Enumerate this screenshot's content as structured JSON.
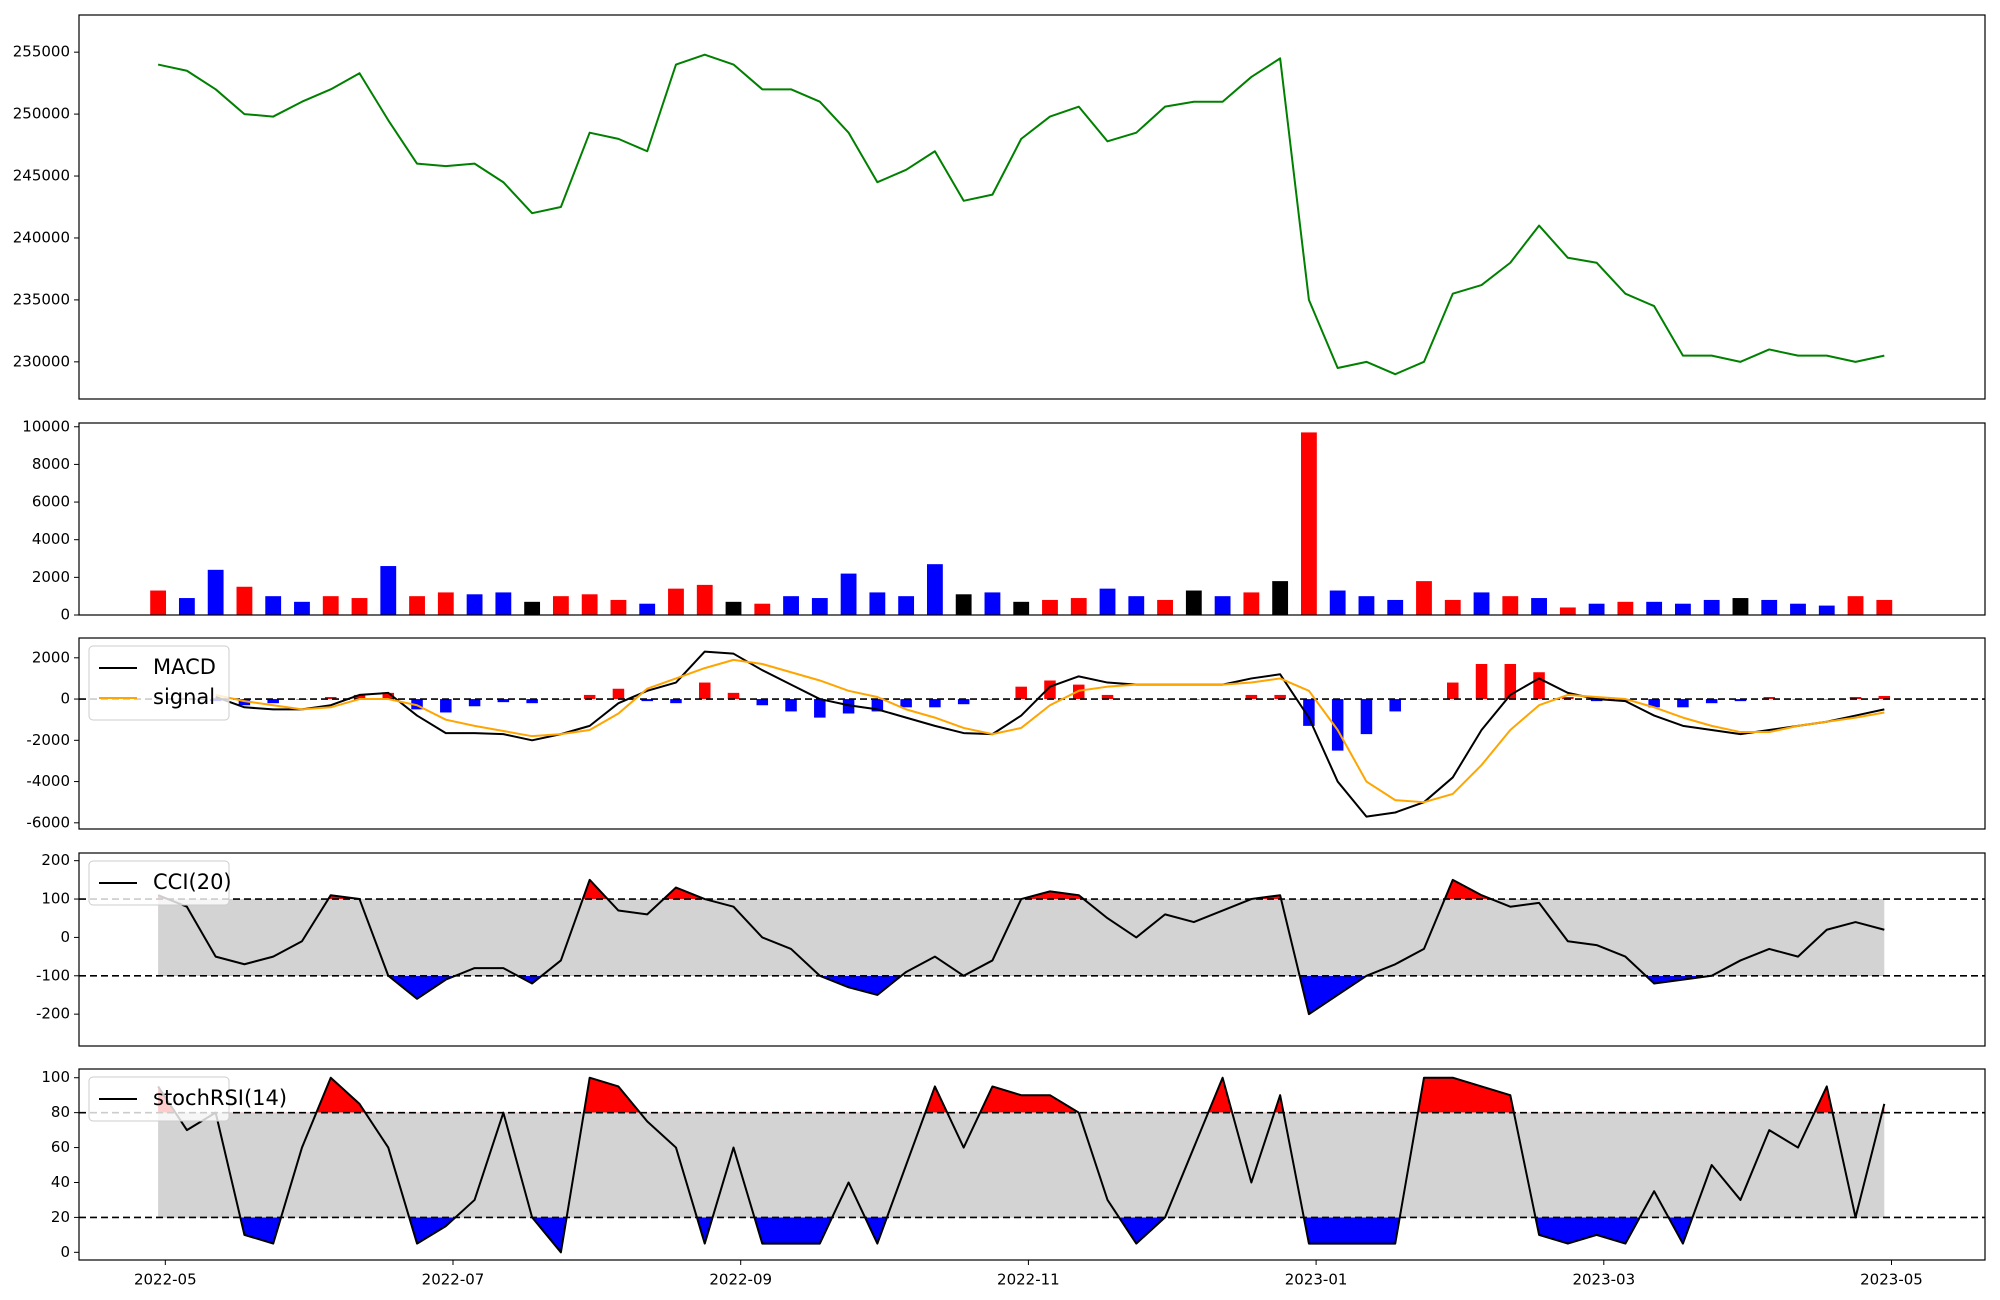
{
  "chart_data": [
    {
      "type": "line",
      "color": "#008000",
      "x": [
        -0.05,
        0.15,
        0.35,
        0.55,
        0.75,
        0.95,
        1.15,
        1.35,
        1.55,
        1.75,
        1.95,
        2.15,
        2.35,
        2.55,
        2.75,
        2.95,
        3.15,
        3.35,
        3.55,
        3.75,
        3.95,
        4.15,
        4.35,
        4.55,
        4.75,
        4.95,
        5.15,
        5.35,
        5.55,
        5.75,
        5.95,
        6.15,
        6.35,
        6.55,
        6.75,
        6.95,
        7.15,
        7.35,
        7.55,
        7.75,
        7.95,
        8.15,
        8.35,
        8.55,
        8.75,
        8.95,
        9.15,
        9.35,
        9.55,
        9.75,
        9.95,
        10.15,
        10.35,
        10.55,
        10.75,
        10.95,
        11.15,
        11.35,
        11.55,
        11.75,
        11.95
      ],
      "values": [
        254000,
        253500,
        252000,
        250000,
        249800,
        251000,
        252000,
        253300,
        249500,
        246000,
        245800,
        246000,
        244500,
        242000,
        242500,
        248500,
        248000,
        247000,
        254000,
        254800,
        254000,
        252000,
        252000,
        251000,
        248500,
        244500,
        245500,
        247000,
        243000,
        243500,
        248000,
        249800,
        250600,
        247800,
        248500,
        250600,
        251000,
        251000,
        253000,
        254500,
        235000,
        229500,
        230000,
        229000,
        230000,
        235500,
        236200,
        238000,
        241000,
        238400,
        238000,
        235500,
        234500,
        230500,
        230500,
        230000,
        231000,
        230500,
        230500,
        230000,
        230500
      ],
      "xlim": [
        -0.6,
        12.65
      ],
      "ylim": [
        227000,
        258000
      ],
      "yticks": [
        230000,
        235000,
        240000,
        245000,
        250000,
        255000
      ]
    },
    {
      "type": "bar",
      "x": [
        -0.05,
        0.15,
        0.35,
        0.55,
        0.75,
        0.95,
        1.15,
        1.35,
        1.55,
        1.75,
        1.95,
        2.15,
        2.35,
        2.55,
        2.75,
        2.95,
        3.15,
        3.35,
        3.55,
        3.75,
        3.95,
        4.15,
        4.35,
        4.55,
        4.75,
        4.95,
        5.15,
        5.35,
        5.55,
        5.75,
        5.95,
        6.15,
        6.35,
        6.55,
        6.75,
        6.95,
        7.15,
        7.35,
        7.55,
        7.75,
        7.95,
        8.15,
        8.35,
        8.55,
        8.75,
        8.95,
        9.15,
        9.35,
        9.55,
        9.75,
        9.95,
        10.15,
        10.35,
        10.55,
        10.75,
        10.95,
        11.15,
        11.35,
        11.55,
        11.75,
        11.95
      ],
      "values": [
        1300,
        900,
        2400,
        1500,
        1000,
        700,
        1000,
        900,
        2600,
        1000,
        1200,
        1100,
        1200,
        700,
        1000,
        1100,
        800,
        600,
        1400,
        1600,
        700,
        600,
        1000,
        900,
        2200,
        1200,
        1000,
        2700,
        1100,
        1200,
        700,
        800,
        900,
        1400,
        1000,
        800,
        1300,
        1000,
        1200,
        1800,
        9700,
        1300,
        1000,
        800,
        1800,
        800,
        1200,
        1000,
        900,
        400,
        600,
        700,
        700,
        600,
        800,
        900,
        800,
        600,
        500,
        1000,
        800
      ],
      "colors": [
        "#ff0000",
        "#0000ff",
        "#0000ff",
        "#ff0000",
        "#0000ff",
        "#0000ff",
        "#ff0000",
        "#ff0000",
        "#0000ff",
        "#ff0000",
        "#ff0000",
        "#0000ff",
        "#0000ff",
        "#000000",
        "#ff0000",
        "#ff0000",
        "#ff0000",
        "#0000ff",
        "#ff0000",
        "#ff0000",
        "#000000",
        "#ff0000",
        "#0000ff",
        "#0000ff",
        "#0000ff",
        "#0000ff",
        "#0000ff",
        "#0000ff",
        "#000000",
        "#0000ff",
        "#000000",
        "#ff0000",
        "#ff0000",
        "#0000ff",
        "#0000ff",
        "#ff0000",
        "#000000",
        "#0000ff",
        "#ff0000",
        "#000000",
        "#ff0000",
        "#0000ff",
        "#0000ff",
        "#0000ff",
        "#ff0000",
        "#ff0000",
        "#0000ff",
        "#ff0000",
        "#0000ff",
        "#ff0000",
        "#0000ff",
        "#ff0000",
        "#0000ff",
        "#0000ff",
        "#0000ff",
        "#000000",
        "#0000ff",
        "#0000ff",
        "#0000ff",
        "#ff0000",
        "#ff0000"
      ],
      "xlim": [
        -0.6,
        12.65
      ],
      "ylim": [
        0,
        10200
      ],
      "yticks": [
        0,
        2000,
        4000,
        6000,
        8000,
        10000
      ]
    },
    {
      "type": "macd",
      "legend": "upper left",
      "x": [
        -0.05,
        0.15,
        0.35,
        0.55,
        0.75,
        0.95,
        1.15,
        1.35,
        1.55,
        1.75,
        1.95,
        2.15,
        2.35,
        2.55,
        2.75,
        2.95,
        3.15,
        3.35,
        3.55,
        3.75,
        3.95,
        4.15,
        4.35,
        4.55,
        4.75,
        4.95,
        5.15,
        5.35,
        5.55,
        5.75,
        5.95,
        6.15,
        6.35,
        6.55,
        6.75,
        6.95,
        7.15,
        7.35,
        7.55,
        7.75,
        7.95,
        8.15,
        8.35,
        8.55,
        8.75,
        8.95,
        9.15,
        9.35,
        9.55,
        9.75,
        9.95,
        10.15,
        10.35,
        10.55,
        10.75,
        10.95,
        11.15,
        11.35,
        11.55,
        11.75,
        11.95
      ],
      "series": [
        {
          "name": "MACD",
          "color": "#000000",
          "values": [
            null,
            null,
            100,
            -400,
            -500,
            -500,
            -300,
            200,
            300,
            -800,
            -1650,
            -1650,
            -1700,
            -2000,
            -1700,
            -1300,
            -200,
            400,
            800,
            2300,
            2200,
            1400,
            700,
            0,
            -300,
            -500,
            -900,
            -1300,
            -1650,
            -1700,
            -800,
            600,
            1100,
            800,
            700,
            700,
            700,
            700,
            1000,
            1200,
            -900,
            -4000,
            -5700,
            -5500,
            -5000,
            -3800,
            -1500,
            200,
            1000,
            300,
            0,
            -100,
            -800,
            -1300,
            -1500,
            -1700,
            -1500,
            -1300,
            -1100,
            -800,
            -500
          ]
        },
        {
          "name": "signal",
          "color": "#ffa500",
          "values": [
            null,
            null,
            200,
            -100,
            -300,
            -500,
            -400,
            0,
            0,
            -300,
            -1000,
            -1300,
            -1550,
            -1800,
            -1700,
            -1500,
            -700,
            500,
            1000,
            1500,
            1900,
            1700,
            1300,
            900,
            400,
            100,
            -500,
            -900,
            -1400,
            -1700,
            -1400,
            -300,
            400,
            600,
            700,
            700,
            700,
            700,
            800,
            1000,
            400,
            -1500,
            -4000,
            -4900,
            -5000,
            -4600,
            -3200,
            -1500,
            -300,
            200,
            100,
            0,
            -400,
            -900,
            -1300,
            -1600,
            -1600,
            -1300,
            -1100,
            -900,
            -650
          ]
        }
      ],
      "histogram": {
        "pos_color": "#ff0000",
        "neg_color": "#0000ff",
        "values": [
          null,
          null,
          -100,
          -300,
          -200,
          0,
          100,
          200,
          300,
          -500,
          -650,
          -350,
          -150,
          -200,
          0,
          200,
          500,
          -100,
          -200,
          800,
          300,
          -300,
          -600,
          -900,
          -700,
          -600,
          -400,
          -400,
          -250,
          0,
          600,
          900,
          700,
          200,
          0,
          0,
          0,
          0,
          200,
          200,
          -1300,
          -2500,
          -1700,
          -600,
          0,
          800,
          1700,
          1700,
          1300,
          100,
          -100,
          -100,
          -400,
          -400,
          -200,
          -100,
          100,
          0,
          0,
          100,
          150
        ]
      },
      "hlines": [
        0
      ],
      "xlim": [
        -0.6,
        12.65
      ],
      "ylim": [
        -6300,
        2960
      ],
      "yticks": [
        -6000,
        -4000,
        -2000,
        0,
        2000
      ]
    },
    {
      "type": "oscillator",
      "legend": "upper left",
      "x": [
        -0.05,
        0.15,
        0.35,
        0.55,
        0.75,
        0.95,
        1.15,
        1.35,
        1.55,
        1.75,
        1.95,
        2.15,
        2.35,
        2.55,
        2.75,
        2.95,
        3.15,
        3.35,
        3.55,
        3.75,
        3.95,
        4.15,
        4.35,
        4.55,
        4.75,
        4.95,
        5.15,
        5.35,
        5.55,
        5.75,
        5.95,
        6.15,
        6.35,
        6.55,
        6.75,
        6.95,
        7.15,
        7.35,
        7.55,
        7.75,
        7.95,
        8.15,
        8.35,
        8.55,
        8.75,
        8.95,
        9.15,
        9.35,
        9.55,
        9.75,
        9.95,
        10.15,
        10.35,
        10.55,
        10.75,
        10.95,
        11.15,
        11.35,
        11.55,
        11.75,
        11.95
      ],
      "series": [
        {
          "name": "CCI(20)",
          "color": "#000000",
          "values": [
            110,
            80,
            -50,
            -70,
            -50,
            -10,
            110,
            100,
            -100,
            -160,
            -110,
            -80,
            -80,
            -120,
            -60,
            150,
            70,
            60,
            130,
            100,
            80,
            0,
            -30,
            -100,
            -130,
            -150,
            -90,
            -50,
            -100,
            -60,
            100,
            120,
            110,
            50,
            0,
            60,
            40,
            70,
            100,
            110,
            -200,
            -150,
            -100,
            -70,
            -30,
            150,
            110,
            80,
            90,
            -10,
            -20,
            -50,
            -120,
            -110,
            -100,
            -60,
            -30,
            -50,
            20,
            40,
            20
          ]
        }
      ],
      "thresholds": [
        100,
        -100
      ],
      "band_color": "#d3d3d3",
      "over_color": "#ff0000",
      "under_color": "#0000ff",
      "xlim": [
        -0.6,
        12.65
      ],
      "ylim": [
        -283,
        220
      ],
      "yticks": [
        -200,
        -100,
        0,
        100,
        200
      ]
    },
    {
      "type": "oscillator",
      "legend": "upper left",
      "x": [
        -0.05,
        0.15,
        0.35,
        0.55,
        0.75,
        0.95,
        1.15,
        1.35,
        1.55,
        1.75,
        1.95,
        2.15,
        2.35,
        2.55,
        2.75,
        2.95,
        3.15,
        3.35,
        3.55,
        3.75,
        3.95,
        4.15,
        4.35,
        4.55,
        4.75,
        4.95,
        5.15,
        5.35,
        5.55,
        5.75,
        5.95,
        6.15,
        6.35,
        6.55,
        6.75,
        6.95,
        7.15,
        7.35,
        7.55,
        7.75,
        7.95,
        8.15,
        8.35,
        8.55,
        8.75,
        8.95,
        9.15,
        9.35,
        9.55,
        9.75,
        9.95,
        10.15,
        10.35,
        10.55,
        10.75,
        10.95,
        11.15,
        11.35,
        11.55,
        11.75,
        11.95
      ],
      "series": [
        {
          "name": "stochRSI(14)",
          "color": "#000000",
          "values": [
            95,
            70,
            80,
            10,
            5,
            60,
            100,
            85,
            60,
            5,
            15,
            30,
            80,
            20,
            0,
            100,
            95,
            75,
            60,
            5,
            60,
            5,
            5,
            5,
            40,
            5,
            50,
            95,
            60,
            95,
            90,
            90,
            80,
            30,
            5,
            20,
            60,
            100,
            40,
            90,
            5,
            5,
            5,
            5,
            100,
            100,
            95,
            90,
            10,
            5,
            10,
            5,
            35,
            5,
            50,
            30,
            70,
            60,
            95,
            20,
            85
          ]
        }
      ],
      "thresholds": [
        80,
        20
      ],
      "band_color": "#d3d3d3",
      "over_color": "#ff0000",
      "under_color": "#0000ff",
      "xlim": [
        -0.6,
        12.65
      ],
      "ylim": [
        -4.4,
        105
      ],
      "yticks": [
        0,
        20,
        40,
        60,
        80,
        100
      ],
      "xticks": [
        {
          "value": 0,
          "label": "2022-05"
        },
        {
          "value": 2,
          "label": "2022-07"
        },
        {
          "value": 4,
          "label": "2022-09"
        },
        {
          "value": 6,
          "label": "2022-11"
        },
        {
          "value": 8,
          "label": "2023-01"
        },
        {
          "value": 10,
          "label": "2023-03"
        },
        {
          "value": 12,
          "label": "2023-05"
        }
      ]
    }
  ]
}
